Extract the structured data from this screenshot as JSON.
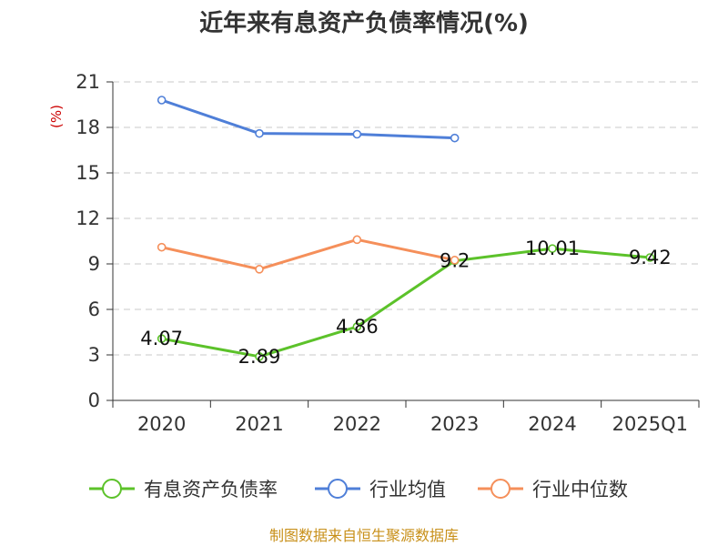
{
  "chart_data": {
    "type": "line",
    "title": "近年来有息资产负债率情况(%)",
    "ylabel": "(%)",
    "categories": [
      "2020",
      "2021",
      "2022",
      "2023",
      "2024",
      "2025Q1"
    ],
    "ylim": [
      0,
      21
    ],
    "yticks": [
      "0",
      "3",
      "6",
      "9",
      "12",
      "15",
      "18",
      "21"
    ],
    "grid": true,
    "legend_position": "bottom",
    "series": [
      {
        "name": "有息资产负债率",
        "color": "#5cc22a",
        "values": [
          4.07,
          2.89,
          4.86,
          9.2,
          10.01,
          9.42
        ],
        "labels": [
          "4.07",
          "2.89",
          "4.86",
          "9.2",
          "10.01",
          "9.42"
        ]
      },
      {
        "name": "行业均值",
        "color": "#4f7fd8",
        "values": [
          19.8,
          17.6,
          17.55,
          17.3,
          null,
          null
        ]
      },
      {
        "name": "行业中位数",
        "color": "#f58f5a",
        "values": [
          10.1,
          8.65,
          10.6,
          9.25,
          null,
          null
        ]
      }
    ],
    "source": "制图数据来自恒生聚源数据库"
  }
}
